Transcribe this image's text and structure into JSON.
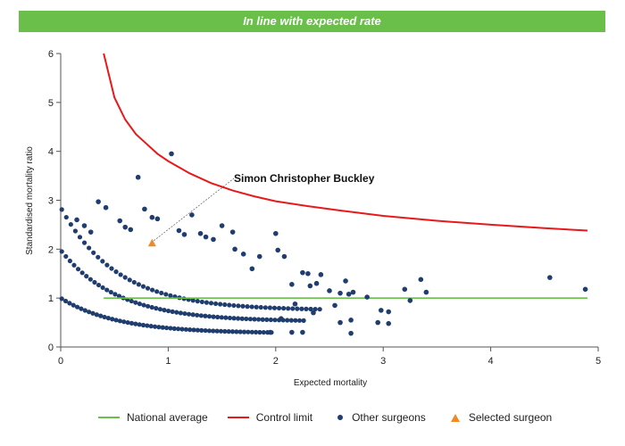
{
  "banner": {
    "text": "In line with expected rate"
  },
  "colors": {
    "banner": "#6abf4b",
    "national_average": "#6abf4b",
    "control_limit": "#e8191b",
    "other_surgeons": "#1f3d6e",
    "selected_surgeon": "#f08a24"
  },
  "legend": {
    "national_average": "National average",
    "control_limit": "Control limit",
    "other_surgeons": "Other surgeons",
    "selected_surgeon": "Selected surgeon"
  },
  "chart_data": {
    "type": "scatter",
    "title": "",
    "xlabel": "Expected mortality",
    "ylabel": "Standardised mortality ratio",
    "xlim": [
      0,
      5
    ],
    "ylim": [
      0,
      6
    ],
    "xticks": [
      "0",
      "1",
      "2",
      "3",
      "4",
      "5"
    ],
    "yticks": [
      "0",
      "1",
      "2",
      "3",
      "4",
      "5",
      "6"
    ],
    "grid": false,
    "legend_position": "bottom",
    "annotation": {
      "text": "Simon Christopher Buckley",
      "x": 0.85,
      "y": 2.12
    },
    "series": [
      {
        "name": "National average",
        "kind": "line",
        "x": [
          0.4,
          4.9
        ],
        "y": [
          1.0,
          1.0
        ]
      },
      {
        "name": "Control limit",
        "kind": "curve",
        "x": [
          0.4,
          0.5,
          0.6,
          0.7,
          0.8,
          0.9,
          1.0,
          1.2,
          1.4,
          1.6,
          1.8,
          2.0,
          2.3,
          2.6,
          3.0,
          3.5,
          4.0,
          4.5,
          4.9
        ],
        "y": [
          6.0,
          5.1,
          4.65,
          4.35,
          4.15,
          3.95,
          3.8,
          3.55,
          3.35,
          3.2,
          3.08,
          2.98,
          2.88,
          2.79,
          2.68,
          2.58,
          2.5,
          2.43,
          2.38
        ]
      },
      {
        "name": "Other surgeons",
        "kind": "scatter",
        "x": [
          1.03,
          0.72,
          0.35,
          0.42,
          0.15,
          0.22,
          0.28,
          0.55,
          0.6,
          0.65,
          0.78,
          0.85,
          0.9,
          1.22,
          1.1,
          1.15,
          1.3,
          1.35,
          1.42,
          1.5,
          1.6,
          1.62,
          1.7,
          1.78,
          1.85,
          2.0,
          2.02,
          2.08,
          2.25,
          2.3,
          2.38,
          2.42,
          2.6,
          2.65,
          2.68,
          2.72,
          2.85,
          2.98,
          3.05,
          3.2,
          3.25,
          3.35,
          3.4,
          4.55,
          4.88,
          2.15,
          2.32,
          2.5,
          2.55,
          2.7,
          2.95,
          3.05,
          2.18,
          2.35,
          2.05,
          2.15,
          1.95,
          2.25,
          2.6,
          2.7
        ],
        "y": [
          3.95,
          3.47,
          2.97,
          2.85,
          2.6,
          2.48,
          2.35,
          2.58,
          2.45,
          2.4,
          2.82,
          2.65,
          2.62,
          2.7,
          2.38,
          2.3,
          2.32,
          2.25,
          2.2,
          2.48,
          2.35,
          2.0,
          1.9,
          1.6,
          1.85,
          2.32,
          1.98,
          1.85,
          1.52,
          1.5,
          1.3,
          1.48,
          1.1,
          1.35,
          1.08,
          1.12,
          1.02,
          0.75,
          0.72,
          1.18,
          0.95,
          1.38,
          1.12,
          1.42,
          1.18,
          1.28,
          1.25,
          1.15,
          0.85,
          0.55,
          0.5,
          0.48,
          0.88,
          0.7,
          0.58,
          0.3,
          0.3,
          0.3,
          0.5,
          0.28
        ]
      },
      {
        "name": "Selected surgeon",
        "kind": "marker",
        "x": [
          0.85
        ],
        "y": [
          2.12
        ]
      }
    ]
  }
}
